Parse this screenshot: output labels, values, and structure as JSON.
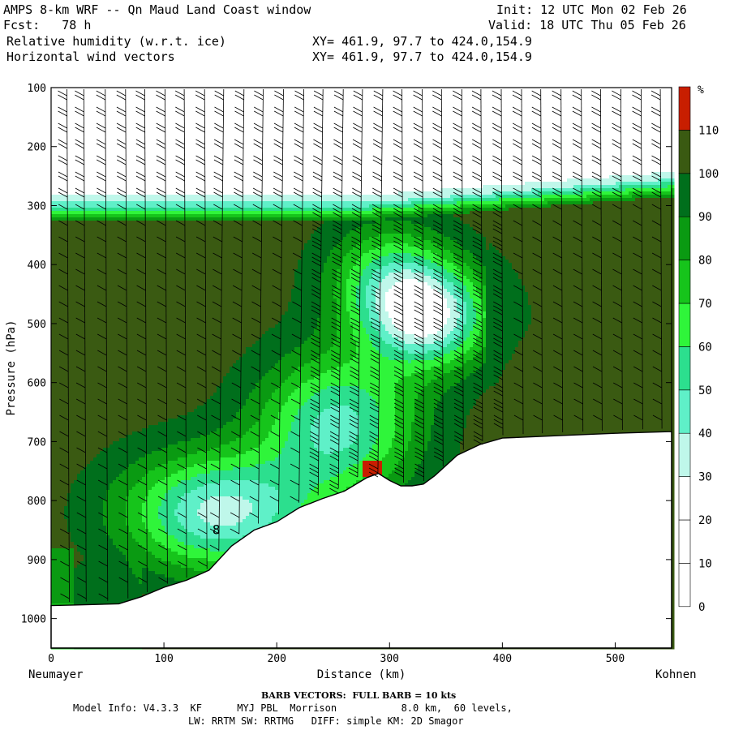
{
  "header": {
    "title": "AMPS 8-km WRF -- Qn Maud Land Coast window",
    "forecast": "Fcst:   78 h",
    "field1": "Relative humidity (w.r.t. ice)",
    "field2": "Horizontal wind vectors",
    "init": "Init: 12 UTC Mon 02 Feb 26",
    "valid": "Valid: 18 UTC Thu 05 Feb 26",
    "xy1": "XY= 461.9, 97.7 to 424.0,154.9",
    "xy2": "XY= 461.9, 97.7 to 424.0,154.9"
  },
  "footer": {
    "barb_note": "BARB VECTORS:  FULL BARB = 10 kts",
    "model_info": "Model Info: V4.3.3  KF      MYJ PBL  Morrison           8.0 km,  60 levels,",
    "physics": "LW: RRTM SW: RRTMG   DIFF: simple KM: 2D Smagor"
  },
  "chart_data": {
    "type": "heatmap",
    "title": "Relative humidity (w.r.t. ice)",
    "xlabel": "Distance (km)",
    "ylabel": "Pressure (hPa)",
    "x_left_label": "Neumayer",
    "x_right_label": "Kohnen",
    "xlim": [
      0,
      550
    ],
    "ylim": [
      1050,
      100
    ],
    "x_ticks": [
      0,
      100,
      200,
      300,
      400,
      500
    ],
    "y_ticks": [
      100,
      200,
      300,
      400,
      500,
      600,
      700,
      800,
      900,
      1000
    ],
    "colorbar": {
      "unit": "%",
      "levels": [
        0,
        10,
        20,
        30,
        40,
        50,
        60,
        70,
        80,
        90,
        100,
        110
      ],
      "colors": [
        "#ffffff",
        "#ffffff",
        "#ffffff",
        "#bff7ea",
        "#5ff0c8",
        "#2cdf8e",
        "#2ff53a",
        "#16c41b",
        "#0a9a12",
        "#006f1c",
        "#3a5a12",
        "#c81e00"
      ]
    },
    "terrain": {
      "x": [
        0,
        20,
        40,
        60,
        80,
        100,
        120,
        140,
        160,
        180,
        200,
        220,
        240,
        260,
        280,
        290,
        300,
        310,
        320,
        330,
        340,
        360,
        380,
        400,
        450,
        500,
        550
      ],
      "p": [
        978,
        977,
        976,
        975,
        963,
        947,
        935,
        918,
        877,
        850,
        836,
        812,
        797,
        784,
        761,
        754,
        766,
        775,
        775,
        772,
        758,
        723,
        705,
        694,
        690,
        686,
        683
      ]
    },
    "contour_label": {
      "x": 143,
      "p": 857,
      "text": "8"
    },
    "barb_columns_km": [
      14,
      29,
      48,
      66,
      83,
      101,
      118,
      136,
      153,
      171,
      188,
      206,
      224,
      241,
      259,
      276,
      294,
      311,
      329,
      346,
      364,
      381,
      399,
      417,
      434,
      452,
      470,
      487,
      505,
      523,
      540
    ]
  }
}
